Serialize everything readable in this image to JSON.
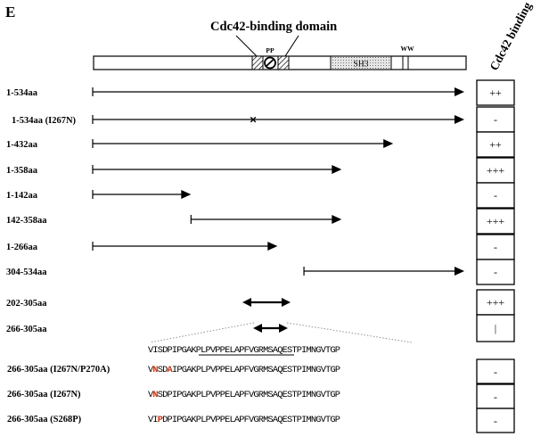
{
  "panel_letter": "E",
  "domain_title": "Cdc42-binding domain",
  "motif_pp": "PP",
  "motif_ww": "WW",
  "sh3_label": "SH3",
  "binding_header": "Cdc42 binding",
  "constructs": [
    {
      "label": "1-534aa",
      "start": 1,
      "end": 534,
      "binding": "++",
      "mutation_marker": false,
      "double_arrow": false
    },
    {
      "label": "1-534aa (I267N)",
      "start": 1,
      "end": 534,
      "binding": "-",
      "mutation_marker": true,
      "double_arrow": false
    },
    {
      "label": "1-432aa",
      "start": 1,
      "end": 432,
      "binding": "++",
      "mutation_marker": false,
      "double_arrow": false
    },
    {
      "label": "1-358aa",
      "start": 1,
      "end": 358,
      "binding": "+++",
      "mutation_marker": false,
      "double_arrow": false
    },
    {
      "label": "1-142aa",
      "start": 1,
      "end": 142,
      "binding": "-",
      "mutation_marker": false,
      "double_arrow": false
    },
    {
      "label": "142-358aa",
      "start": 142,
      "end": 358,
      "binding": "+++",
      "mutation_marker": false,
      "double_arrow": false
    },
    {
      "label": "1-266aa",
      "start": 1,
      "end": 266,
      "binding": "-",
      "mutation_marker": false,
      "double_arrow": false
    },
    {
      "label": "304-534aa",
      "start": 304,
      "end": 534,
      "binding": "-",
      "mutation_marker": false,
      "double_arrow": false
    },
    {
      "label": "202-305aa",
      "start": 202,
      "end": 305,
      "binding": "+++",
      "mutation_marker": false,
      "double_arrow": true
    },
    {
      "label": "266-305aa",
      "start": 266,
      "end": 305,
      "binding": "|",
      "mutation_marker": false,
      "double_arrow": true
    }
  ],
  "sequence_wt": "VISDPIPGAKPLPVPPELAPFVGRMSAQESTPIMNGVTGP",
  "mutants": [
    {
      "label": "266-305aa (I267N/P270A)",
      "binding": "-",
      "pre": "V",
      "m1": "N",
      "mid": "SD",
      "m2": "A",
      "post": "IPGAKPLPVPPELAPFVGRMSAQESTPIMNGVTGP"
    },
    {
      "label": "266-305aa (I267N)",
      "binding": "-",
      "pre": "V",
      "m1": "N",
      "mid": "SDPIPGAKPLPVPPELAPFVGRMSAQESTPIMNGVTGP",
      "m2": "",
      "post": ""
    },
    {
      "label": "266-305aa (S268P)",
      "binding": "-",
      "pre": "VI",
      "m1": "P",
      "mid": "DPIPGAKPLPVPPELAPFVGRMSAQESTPIMNGVTGP",
      "m2": "",
      "post": ""
    }
  ],
  "colors": {
    "line": "#000000",
    "mutation": "#cc3311",
    "dotted_guide": "#888888",
    "sh3_fill": "#e6e6e6"
  }
}
